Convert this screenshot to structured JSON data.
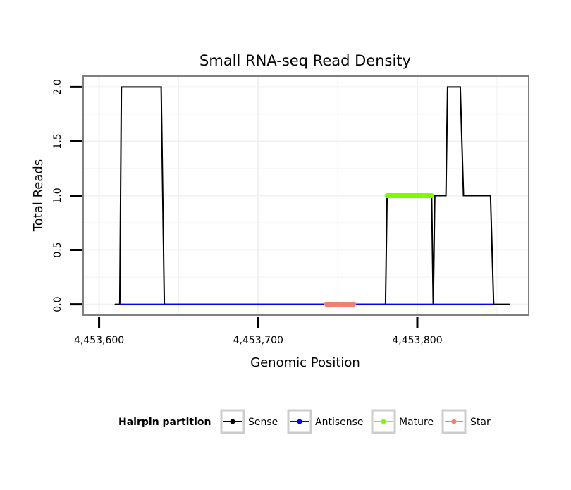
{
  "chart_data": {
    "type": "line",
    "title": "Small RNA-seq Read Density",
    "xlabel": "Genomic Position",
    "ylabel": "Total Reads",
    "xlim": [
      4453590,
      4453870
    ],
    "ylim": [
      -0.1,
      2.1
    ],
    "x_ticks": [
      4453600,
      4453700,
      4453800
    ],
    "x_tick_labels": [
      "4,453,600",
      "4,453,700",
      "4,453,800"
    ],
    "y_ticks": [
      0.0,
      0.5,
      1.0,
      1.5,
      2.0
    ],
    "y_tick_labels": [
      "0.0",
      "0.5",
      "1.0",
      "1.5",
      "2.0"
    ],
    "grid": true,
    "legend": {
      "title": "Hairpin partition",
      "position": "bottom",
      "entries": [
        "Sense",
        "Antisense",
        "Mature",
        "Star"
      ]
    },
    "series": [
      {
        "name": "Sense",
        "color": "#000000",
        "points": [
          [
            4453610,
            0
          ],
          [
            4453613,
            0
          ],
          [
            4453614,
            2
          ],
          [
            4453639,
            2
          ],
          [
            4453641,
            0
          ],
          [
            4453780,
            0
          ],
          [
            4453781,
            1
          ],
          [
            4453809,
            1
          ],
          [
            4453810,
            0
          ],
          [
            4453811,
            1
          ],
          [
            4453818,
            1
          ],
          [
            4453819,
            2
          ],
          [
            4453827,
            2
          ],
          [
            4453829,
            1
          ],
          [
            4453846,
            1
          ],
          [
            4453848,
            0
          ],
          [
            4453858,
            0
          ]
        ]
      },
      {
        "name": "Antisense",
        "color": "#0000ff",
        "points": [
          [
            4453613,
            0
          ],
          [
            4453641,
            0
          ],
          [
            4453780,
            0
          ],
          [
            4453848,
            0
          ]
        ]
      },
      {
        "name": "Mature",
        "color": "#7cfc00",
        "points": [
          [
            4453781,
            1
          ],
          [
            4453809,
            1
          ]
        ]
      },
      {
        "name": "Star",
        "color": "#f08070",
        "points": [
          [
            4453743,
            0
          ],
          [
            4453760,
            0
          ]
        ]
      }
    ]
  }
}
